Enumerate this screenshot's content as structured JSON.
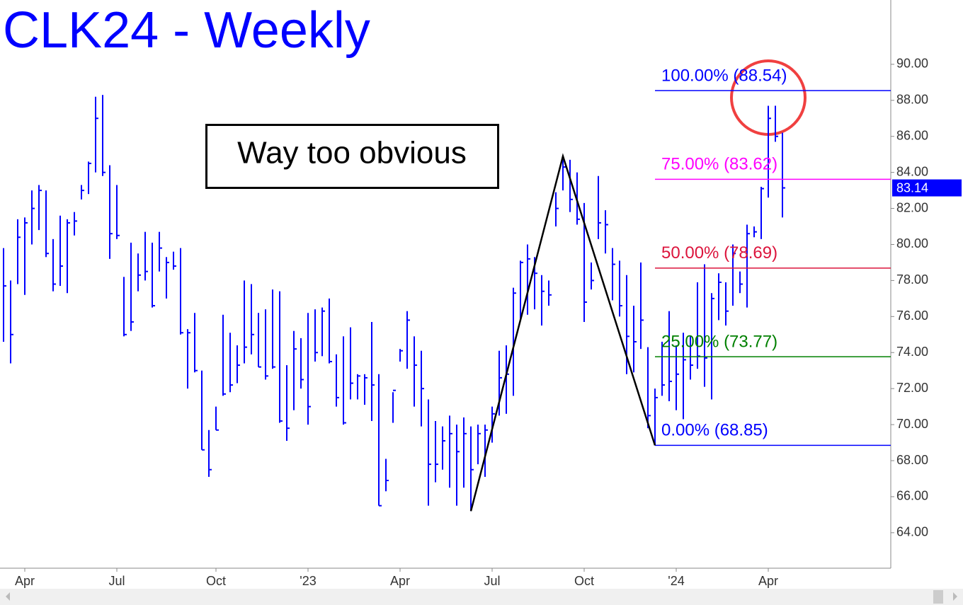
{
  "chart_data": {
    "type": "ohlc",
    "title": "CLK24 - Weekly",
    "color": "#0000ff",
    "categories": [
      null,
      null,
      null,
      "Apr",
      null,
      null,
      null,
      null,
      null,
      null,
      null,
      null,
      null,
      null,
      null,
      null,
      "Jul",
      null,
      null,
      null,
      null,
      null,
      null,
      null,
      null,
      null,
      null,
      null,
      null,
      null,
      "Oct",
      null,
      null,
      null,
      null,
      null,
      null,
      null,
      null,
      null,
      null,
      null,
      null,
      "'23",
      null,
      null,
      null,
      null,
      null,
      null,
      null,
      null,
      null,
      null,
      null,
      null,
      "Apr",
      null,
      null,
      null,
      null,
      null,
      null,
      null,
      null,
      null,
      null,
      null,
      null,
      "Jul",
      null,
      null,
      null,
      null,
      null,
      null,
      null,
      null,
      null,
      null,
      null,
      null,
      "Oct",
      null,
      null,
      null,
      null,
      null,
      null,
      null,
      null,
      null,
      null,
      null,
      null,
      "'24",
      null,
      null,
      null,
      null,
      null,
      null,
      null,
      null,
      null,
      null,
      null,
      null,
      "Apr",
      null,
      null
    ],
    "high": [
      79.8,
      78,
      81.4,
      81.5,
      83,
      83.3,
      83,
      80.3,
      81.6,
      81.4,
      81.8,
      83.3,
      84.6,
      88.2,
      88.3,
      84.4,
      83.3,
      78.2,
      80.1,
      79.5,
      80.7,
      80.1,
      80.7,
      79.3,
      79.6,
      79.8,
      75.3,
      76.2,
      73,
      69.7,
      71,
      76.1,
      75.1,
      74.4,
      78,
      77.8,
      76.2,
      76.4,
      77.5,
      77.4,
      73.3,
      75.2,
      74.8,
      76.2,
      76.4,
      76.5,
      77,
      73.9,
      74.9,
      75.4,
      72.8,
      72.8,
      75.7,
      72.8,
      68.1,
      71.8,
      74.2,
      76.3,
      74.9,
      74.1,
      71.4,
      70.2,
      69.9,
      70.5,
      70,
      70.4,
      69.9,
      70,
      70,
      71,
      74.1,
      74.4,
      77.6,
      79.1,
      80,
      79.3,
      78.3,
      78,
      82.9,
      84.9,
      84.7,
      84,
      82.3,
      79,
      83.8,
      81.9,
      79.8,
      79.1,
      78.3,
      76.6,
      79,
      74.3,
      72,
      74.6,
      76.3,
      74.4,
      75.1,
      74.9,
      77.9,
      78.9,
      77.3,
      78.4,
      77.9,
      80,
      78.5,
      81.1,
      81,
      83.2,
      87.7,
      87.7,
      86.2
    ],
    "low": [
      74.6,
      73.4,
      77.8,
      77.2,
      80,
      80.8,
      79.3,
      77.4,
      77.7,
      77.3,
      80.5,
      82.5,
      82.8,
      84,
      83.8,
      79.2,
      80.3,
      74.9,
      75.2,
      77.4,
      78,
      76.5,
      78.5,
      77,
      78.6,
      75,
      72,
      72.9,
      68.6,
      67.1,
      69.7,
      71.6,
      71.8,
      72.3,
      73.4,
      73.9,
      73.2,
      72.5,
      73.1,
      70.1,
      69.1,
      70.8,
      72,
      70,
      73.5,
      73.8,
      73.4,
      71,
      70,
      71.4,
      71.4,
      71.1,
      70.2,
      65.5,
      66.3,
      70.1,
      73.5,
      73.1,
      71,
      69.9,
      65.5,
      66.8,
      67.5,
      66.5,
      65.5,
      66.5,
      65.2,
      67.8,
      67.1,
      69,
      70.5,
      70.6,
      71.6,
      75.9,
      76.1,
      76.4,
      75.5,
      76.6,
      81,
      83,
      81.8,
      81.1,
      75.7,
      77.5,
      80.3,
      79.5,
      76.9,
      76,
      72.8,
      72.9,
      74.2,
      69.8,
      68.9,
      71.6,
      71.3,
      70.8,
      70.3,
      72.5,
      73.1,
      72.1,
      71.4,
      75.8,
      75.5,
      76.6,
      77.3,
      76.5,
      80.4,
      80.3,
      82.6,
      85.7,
      81.5
    ],
    "close": [
      77.7,
      75,
      80.4,
      81.2,
      82,
      83,
      79.5,
      77.8,
      78.8,
      81.2,
      81.3,
      83,
      84.5,
      87,
      84,
      80.6,
      80.5,
      75,
      75.7,
      78.3,
      78.5,
      76.6,
      79.8,
      79,
      78.8,
      75.1,
      75.1,
      73,
      68.6,
      67.5,
      69.7,
      71.7,
      72.2,
      73.3,
      74.3,
      75,
      73.2,
      72.7,
      73.2,
      70.2,
      69.8,
      74.2,
      72.5,
      71,
      74,
      76.3,
      73.5,
      71.5,
      70.1,
      72.3,
      72.7,
      72.6,
      72.2,
      65.5,
      66.9,
      71.9,
      74.1,
      75.8,
      73.3,
      72,
      67.8,
      67.8,
      69.1,
      69.5,
      68.5,
      69.5,
      67.5,
      69.5,
      69.7,
      70.6,
      72.6,
      72.8,
      77.3,
      79,
      79.2,
      78.4,
      77.4,
      77.2,
      82,
      84.3,
      82.5,
      81.4,
      76.8,
      78,
      81.2,
      81.1,
      78.9,
      76.6,
      74.9,
      74.6,
      75.8,
      70.5,
      71.5,
      72.2,
      72.4,
      72.8,
      73.6,
      73.3,
      73.8,
      73.7,
      77,
      77.9,
      76.3,
      79.5,
      77.8,
      80.6,
      80.7,
      83.1,
      87,
      86,
      83.14
    ],
    "ylim": [
      62.03,
      93.57
    ],
    "yticks": [
      {
        "value": 64,
        "label": "64.00"
      },
      {
        "value": 66,
        "label": "66.00"
      },
      {
        "value": 68,
        "label": "68.00"
      },
      {
        "value": 70,
        "label": "70.00"
      },
      {
        "value": 72,
        "label": "72.00"
      },
      {
        "value": 74,
        "label": "74.00"
      },
      {
        "value": 76,
        "label": "76.00"
      },
      {
        "value": 78,
        "label": "78.00"
      },
      {
        "value": 80,
        "label": "80.00"
      },
      {
        "value": 82,
        "label": "82.00"
      },
      {
        "value": 84,
        "label": "84.00"
      },
      {
        "value": 86,
        "label": "86.00"
      },
      {
        "value": 88,
        "label": "88.00"
      },
      {
        "value": 90,
        "label": "90.00"
      }
    ],
    "fib_levels": [
      {
        "value": 88.54,
        "label": "100.00% (88.54)",
        "color": "#0000ff"
      },
      {
        "value": 83.62,
        "label": "75.00% (83.62)",
        "color": "#ff00ff"
      },
      {
        "value": 78.69,
        "label": "50.00% (78.69)",
        "color": "#dc143c"
      },
      {
        "value": 73.77,
        "label": "25.00% (73.77)",
        "color": "#008000"
      },
      {
        "value": 68.85,
        "label": "0.00% (68.85)",
        "color": "#0000ff"
      }
    ],
    "pattern": {
      "x": [
        66,
        79,
        92
      ],
      "values": [
        65.2,
        84.9,
        68.85
      ],
      "color": "#000000"
    },
    "annotation": "Way too obvious"
  }
}
